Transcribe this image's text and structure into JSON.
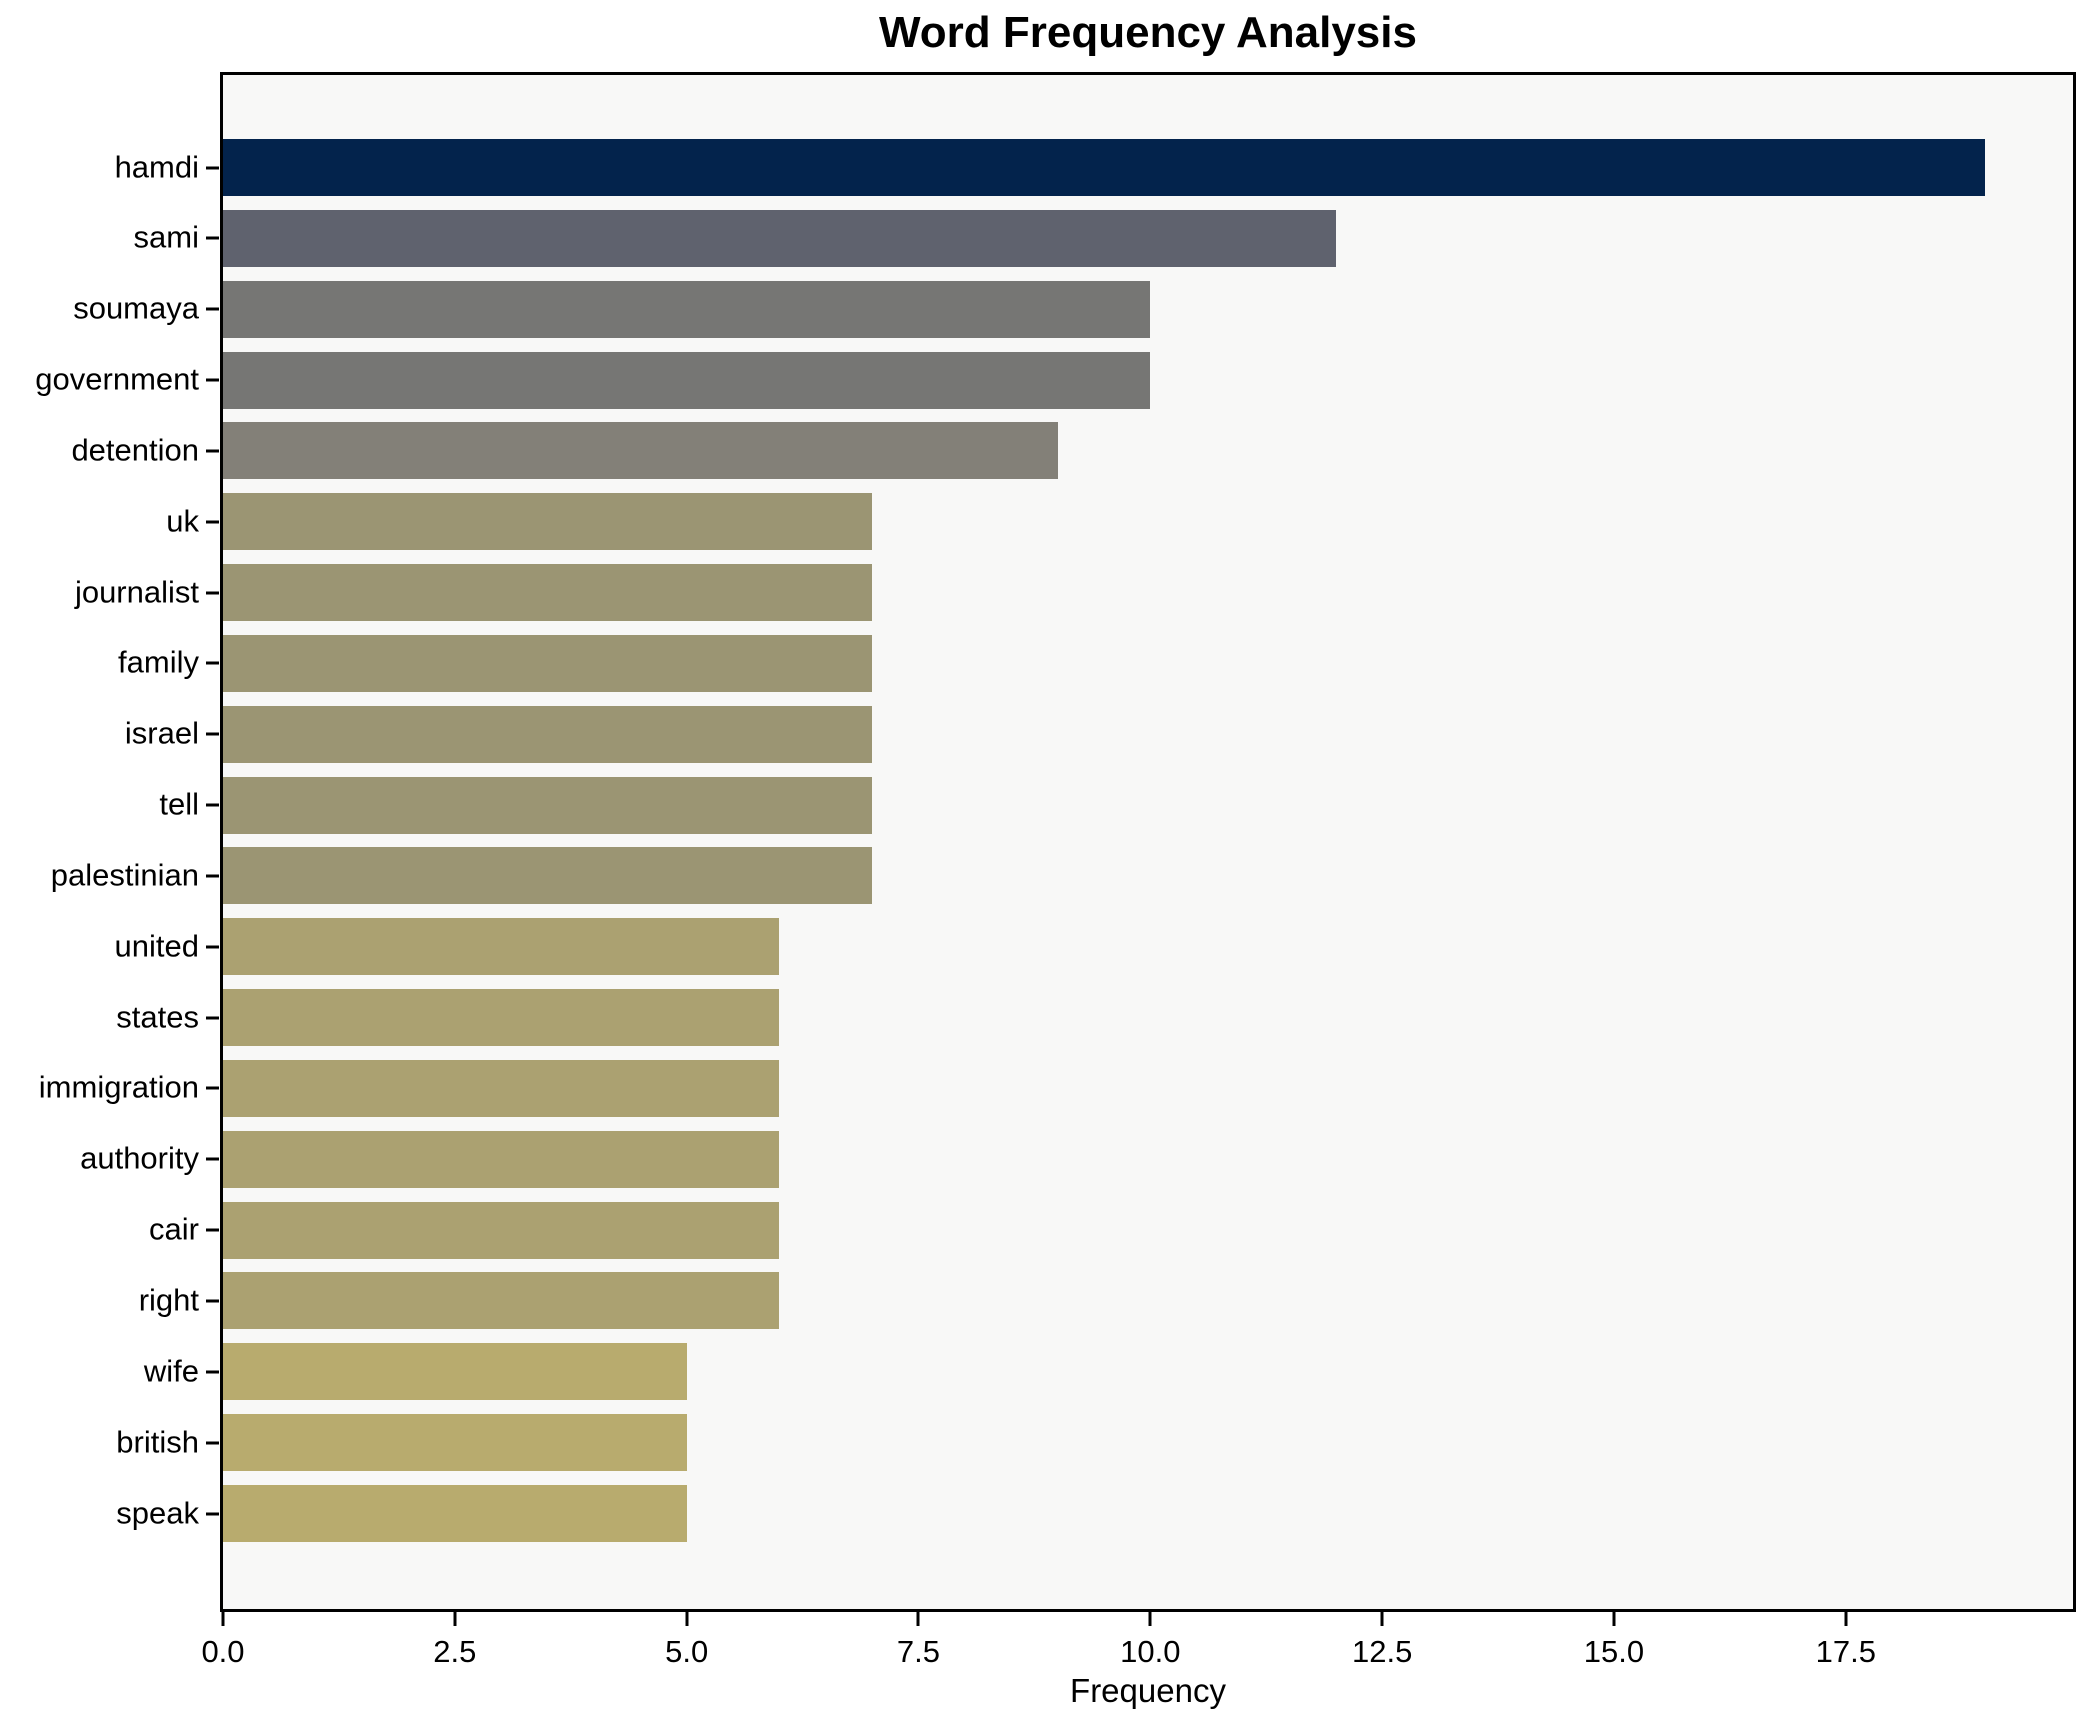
{
  "chart_data": {
    "type": "bar",
    "orientation": "horizontal",
    "title": "Word Frequency Analysis",
    "xlabel": "Frequency",
    "ylabel": "",
    "categories": [
      "hamdi",
      "sami",
      "soumaya",
      "government",
      "detention",
      "uk",
      "journalist",
      "family",
      "israel",
      "tell",
      "palestinian",
      "united",
      "states",
      "immigration",
      "authority",
      "cair",
      "right",
      "wife",
      "british",
      "speak"
    ],
    "values": [
      19,
      12,
      10,
      10,
      9,
      7,
      7,
      7,
      7,
      7,
      7,
      6,
      6,
      6,
      6,
      6,
      6,
      5,
      5,
      5
    ],
    "bar_colors": [
      "#03234c",
      "#5f626e",
      "#767674",
      "#767674",
      "#838078",
      "#9b9573",
      "#9b9573",
      "#9b9573",
      "#9b9573",
      "#9b9573",
      "#9b9573",
      "#aba171",
      "#aba171",
      "#aba171",
      "#aba171",
      "#aba171",
      "#aba171",
      "#b8ab6e",
      "#b8ab6e",
      "#b8ab6e"
    ],
    "xlim": [
      0,
      19.95
    ],
    "x_ticks": [
      {
        "value": 0,
        "label": "0.0"
      },
      {
        "value": 2.5,
        "label": "2.5"
      },
      {
        "value": 5,
        "label": "5.0"
      },
      {
        "value": 7.5,
        "label": "7.5"
      },
      {
        "value": 10,
        "label": "10.0"
      },
      {
        "value": 12.5,
        "label": "12.5"
      },
      {
        "value": 15,
        "label": "15.0"
      },
      {
        "value": 17.5,
        "label": "17.5"
      }
    ],
    "grid": false,
    "legend": null,
    "colors": {
      "plot_background": "#f8f8f7",
      "figure_background": "#ffffff",
      "spine": "#000000",
      "text": "#000000"
    }
  }
}
